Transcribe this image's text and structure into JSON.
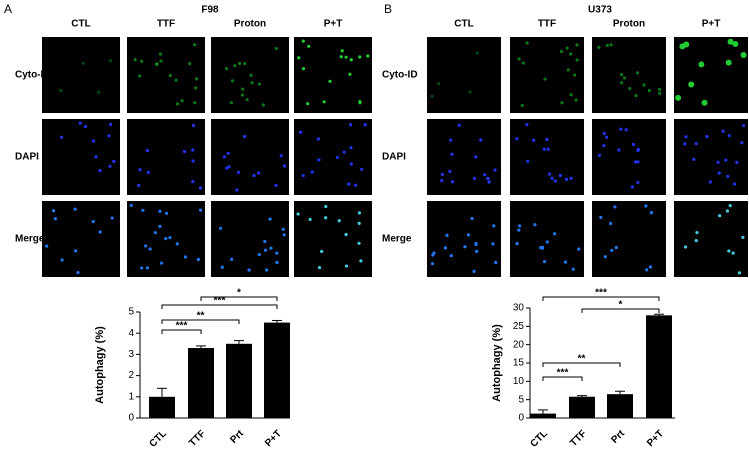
{
  "panels": [
    {
      "label": "A",
      "title": "F98",
      "columns": [
        "CTL",
        "TTF",
        "Proton",
        "P+T"
      ],
      "rows": [
        "Cyto-ID",
        "DAPI",
        "Merge"
      ]
    },
    {
      "label": "B",
      "title": "U373",
      "columns": [
        "CTL",
        "TTF",
        "Proton",
        "P+T"
      ],
      "rows": [
        "Cyto-ID",
        "DAPI",
        "Merge"
      ]
    }
  ],
  "chart_data": [
    {
      "type": "bar",
      "ylabel": "Autophagy (%)",
      "categories": [
        "CTL",
        "TTF",
        "Prt",
        "P+T"
      ],
      "values": [
        1.0,
        3.3,
        3.5,
        4.5
      ],
      "errors": [
        0.4,
        0.1,
        0.15,
        0.1
      ],
      "color": "#000000",
      "ylim": [
        0,
        5
      ],
      "yticks": [
        0,
        1,
        2,
        3,
        4,
        5
      ],
      "annotations": [
        {
          "label": "***",
          "from": "CTL",
          "to": "TTF"
        },
        {
          "label": "**",
          "from": "CTL",
          "to": "Prt"
        },
        {
          "label": "***",
          "from": "CTL",
          "to": "P+T"
        },
        {
          "label": "*",
          "from": "TTF",
          "to": "P+T"
        }
      ]
    },
    {
      "type": "bar",
      "ylabel": "Autophagy (%)",
      "categories": [
        "CTL",
        "TTF",
        "Prt",
        "P+T"
      ],
      "values": [
        1.2,
        5.8,
        6.5,
        28
      ],
      "errors": [
        1.0,
        0.3,
        0.8,
        0.3
      ],
      "color": "#000000",
      "ylim": [
        0,
        30
      ],
      "yticks": [
        0,
        5,
        10,
        15,
        20,
        25,
        30
      ],
      "annotations": [
        {
          "label": "***",
          "from": "CTL",
          "to": "TTF"
        },
        {
          "label": "**",
          "from": "CTL",
          "to": "Prt"
        },
        {
          "label": "*",
          "from": "TTF",
          "to": "P+T"
        },
        {
          "label": "***",
          "from": "CTL",
          "to": "P+T"
        }
      ]
    }
  ]
}
